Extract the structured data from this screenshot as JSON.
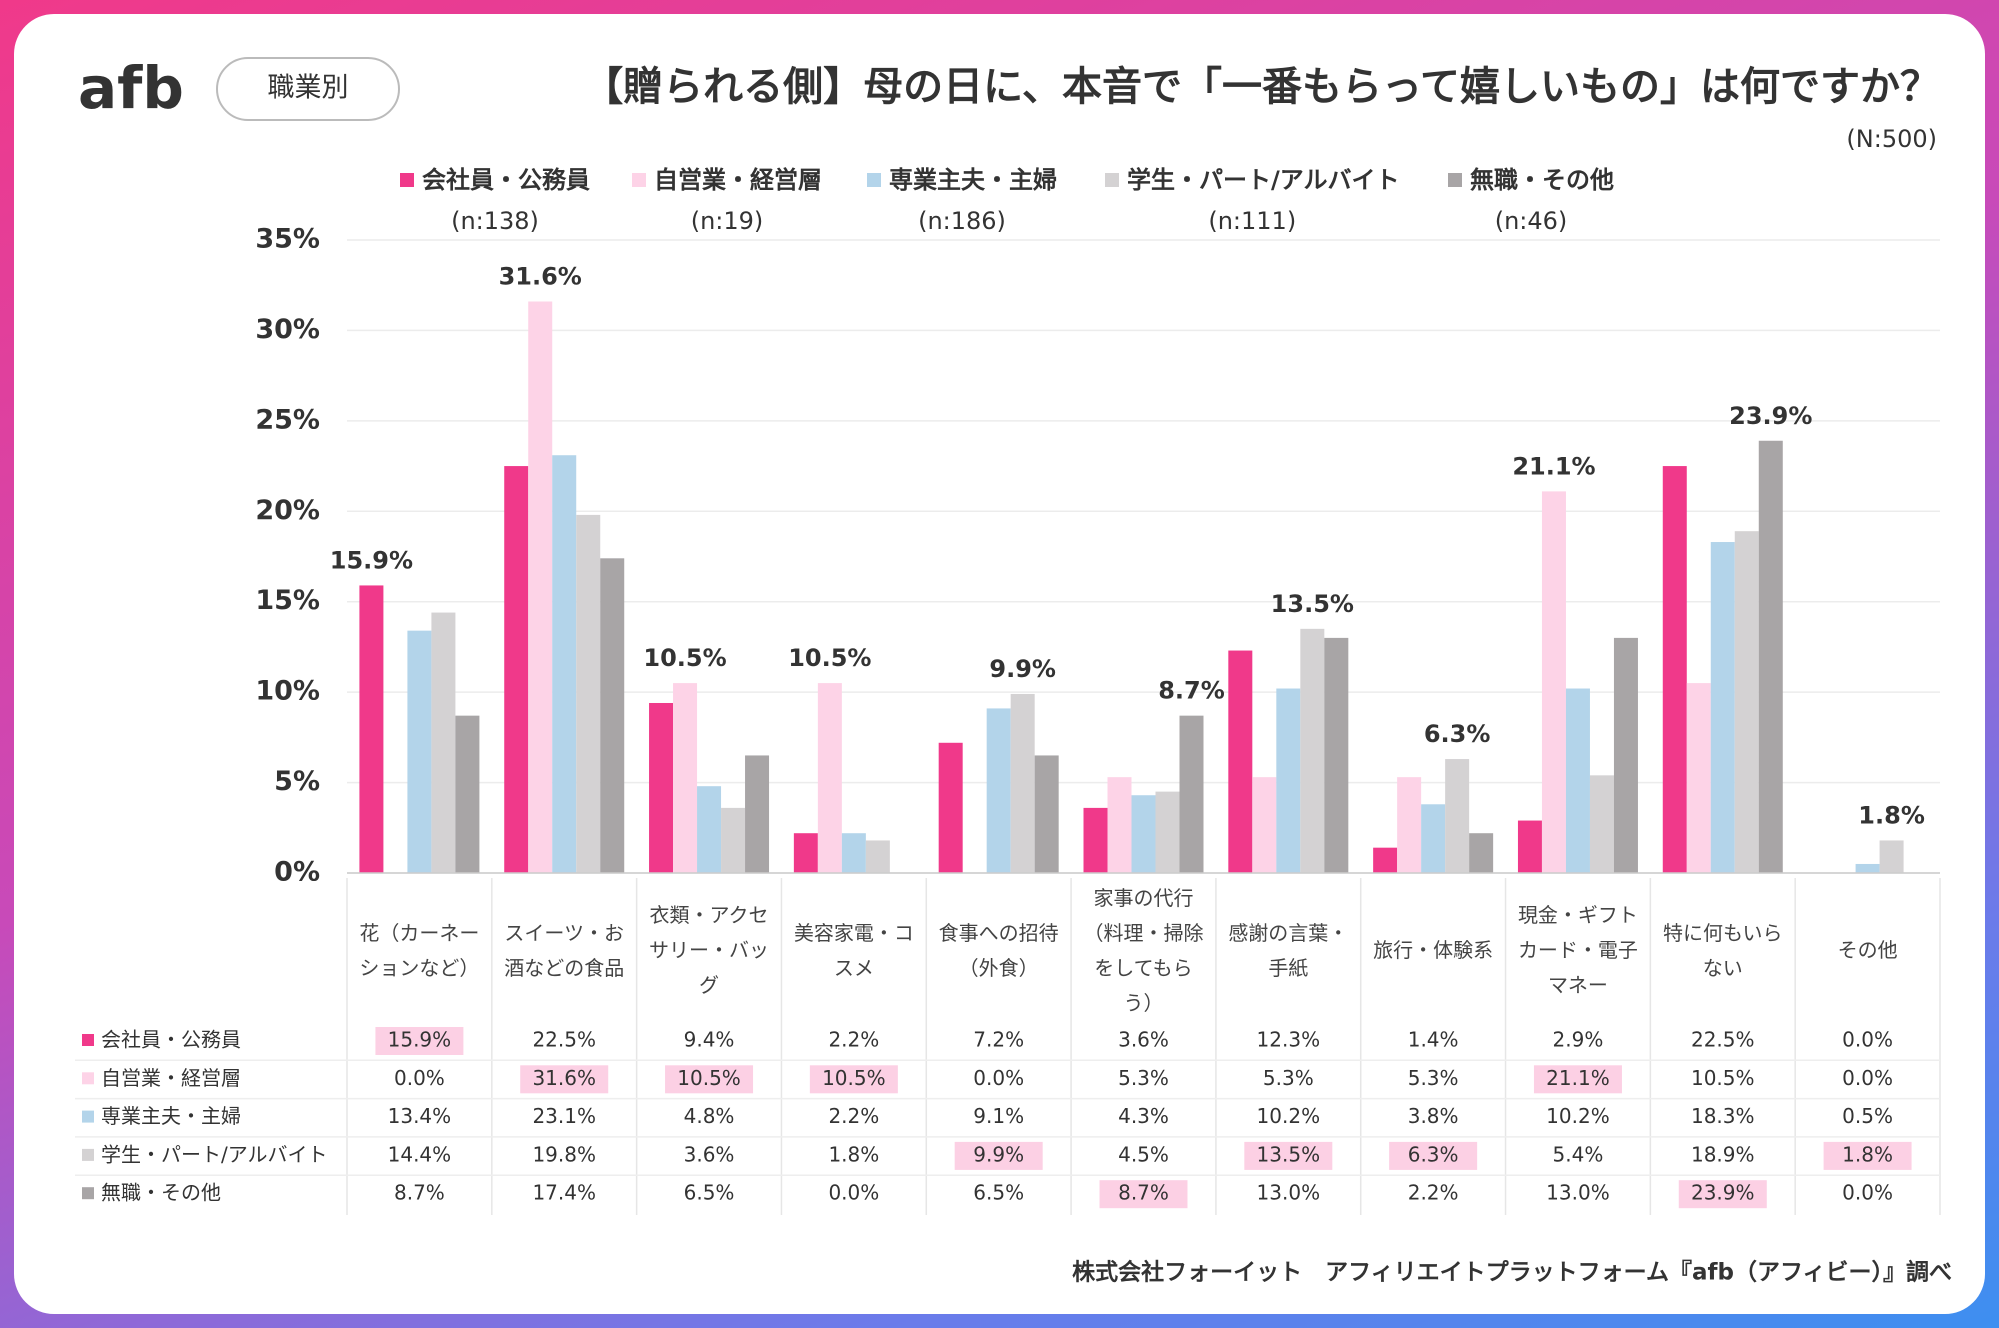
{
  "logo": "afb",
  "chart_data": {
    "type": "bar",
    "tag": "職業別",
    "title": "【贈られる側】母の日に、本音で「一番もらって嬉しいもの」は何ですか？",
    "subtitle": "(N:500)",
    "categories": [
      "花（カーネーションなど）",
      "スイーツ・お酒などの食品",
      "衣類・アクセサリー・バッグ",
      "美容家電・コスメ",
      "食事への招待（外食）",
      "家事の代行（料理・掃除をしてもらう）",
      "感謝の言葉・手紙",
      "旅行・体験系",
      "現金・ギフトカード・電子マネー",
      "特に何もいらない",
      "その他"
    ],
    "series": [
      {
        "name": "会社員・公務員",
        "n": "(n:138)",
        "color": "#f0398a",
        "values": [
          15.9,
          22.5,
          9.4,
          2.2,
          7.2,
          3.6,
          12.3,
          1.4,
          2.9,
          22.5,
          0.0
        ],
        "value_labels": [
          "15.9%",
          "22.5%",
          "9.4%",
          "2.2%",
          "7.2%",
          "3.6%",
          "12.3%",
          "1.4%",
          "2.9%",
          "22.5%",
          "0.0%"
        ]
      },
      {
        "name": "自営業・経営層",
        "n": "(n:19)",
        "color": "#fdd3e7",
        "values": [
          0.0,
          31.6,
          10.5,
          10.5,
          0.0,
          5.3,
          5.3,
          5.3,
          21.1,
          10.5,
          0.0
        ],
        "value_labels": [
          "0.0%",
          "31.6%",
          "10.5%",
          "10.5%",
          "0.0%",
          "5.3%",
          "5.3%",
          "5.3%",
          "21.1%",
          "10.5%",
          "0.0%"
        ]
      },
      {
        "name": "専業主夫・主婦",
        "n": "(n:186)",
        "color": "#b3d4ea",
        "values": [
          13.4,
          23.1,
          4.8,
          2.2,
          9.1,
          4.3,
          10.2,
          3.8,
          10.2,
          18.3,
          0.5
        ],
        "value_labels": [
          "13.4%",
          "23.1%",
          "4.8%",
          "2.2%",
          "9.1%",
          "4.3%",
          "10.2%",
          "3.8%",
          "10.2%",
          "18.3%",
          "0.5%"
        ]
      },
      {
        "name": "学生・パート/アルバイト",
        "n": "(n:111)",
        "color": "#d4d2d3",
        "values": [
          14.4,
          19.8,
          3.6,
          1.8,
          9.9,
          4.5,
          13.5,
          6.3,
          5.4,
          18.9,
          1.8
        ],
        "value_labels": [
          "14.4%",
          "19.8%",
          "3.6%",
          "1.8%",
          "9.9%",
          "4.5%",
          "13.5%",
          "6.3%",
          "5.4%",
          "18.9%",
          "1.8%"
        ]
      },
      {
        "name": "無職・その他",
        "n": "(n:46)",
        "color": "#a8a5a6",
        "values": [
          8.7,
          17.4,
          6.5,
          0.0,
          6.5,
          8.7,
          13.0,
          2.2,
          13.0,
          23.9,
          0.0
        ],
        "value_labels": [
          "8.7%",
          "17.4%",
          "6.5%",
          "0.0%",
          "6.5%",
          "8.7%",
          "13.0%",
          "2.2%",
          "13.0%",
          "23.9%",
          "0.0%"
        ]
      }
    ],
    "highlighted": [
      0,
      1,
      1,
      1,
      3,
      4,
      3,
      3,
      1,
      4,
      3
    ],
    "ylim": [
      0,
      35
    ],
    "yticks": [
      {
        "value": 0,
        "label": "0%"
      },
      {
        "value": 5,
        "label": "5%"
      },
      {
        "value": 10,
        "label": "10%"
      },
      {
        "value": 15,
        "label": "15%"
      },
      {
        "value": 20,
        "label": "20%"
      },
      {
        "value": 25,
        "label": "25%"
      },
      {
        "value": 30,
        "label": "30%"
      },
      {
        "value": 35,
        "label": "35%"
      }
    ],
    "grid": true,
    "footer": "株式会社フォーイット　アフィリエイトプラットフォーム『afb（アフィビー）』調べ"
  }
}
